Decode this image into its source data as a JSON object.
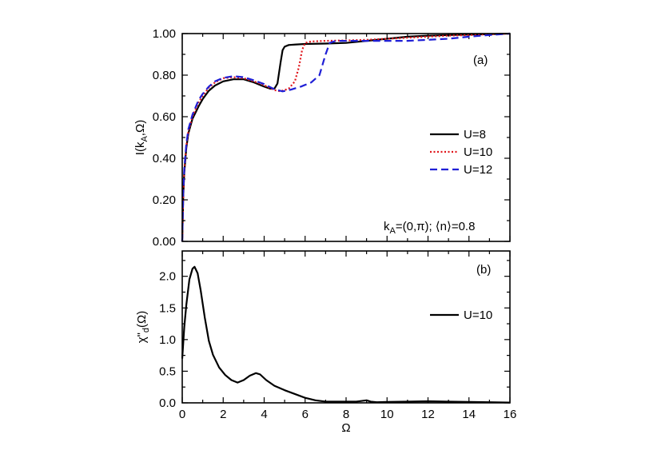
{
  "chart_data": [
    {
      "panel": "(a)",
      "type": "line",
      "xlim": [
        0,
        16
      ],
      "ylim": [
        0,
        1
      ],
      "xlabel": "",
      "ylabel": "I(kA,Ω)",
      "ylabel_parts": {
        "main": "I(k",
        "sub": "A",
        "tail": ",Ω)"
      },
      "y_ticks": [
        0.0,
        0.2,
        0.4,
        0.6,
        0.8,
        1.0
      ],
      "y_tick_labels": [
        "0.00",
        "0.20",
        "0.40",
        "0.60",
        "0.80",
        "1.00"
      ],
      "annotation": "kA=(0,π); ⟨n⟩=0.8",
      "annotation_parts": {
        "main": "k",
        "sub": "A",
        "tail": "=(0,π); ⟨n⟩=0.8"
      },
      "legend_position": "right-middle",
      "series": [
        {
          "name": "U=8",
          "color": "#000000",
          "dash": "solid",
          "x": [
            0,
            0.05,
            0.1,
            0.2,
            0.3,
            0.5,
            0.8,
            1.0,
            1.3,
            1.6,
            2.0,
            2.5,
            3.0,
            3.5,
            4.0,
            4.3,
            4.5,
            4.65,
            4.8,
            4.9,
            5.0,
            5.2,
            5.5,
            6.0,
            7.0,
            8.0,
            9.0,
            10.0,
            11.0,
            12.0,
            13.0,
            14.0,
            15.0,
            16.0
          ],
          "y": [
            0.0,
            0.22,
            0.33,
            0.45,
            0.52,
            0.59,
            0.65,
            0.685,
            0.725,
            0.75,
            0.77,
            0.78,
            0.78,
            0.765,
            0.745,
            0.735,
            0.735,
            0.76,
            0.86,
            0.92,
            0.937,
            0.945,
            0.947,
            0.95,
            0.952,
            0.955,
            0.965,
            0.975,
            0.985,
            0.99,
            0.993,
            0.995,
            0.997,
            1.0
          ]
        },
        {
          "name": "U=10",
          "color": "#e0151b",
          "dash": "dotted",
          "x": [
            0,
            0.05,
            0.1,
            0.2,
            0.3,
            0.5,
            0.8,
            1.0,
            1.3,
            1.6,
            2.0,
            2.5,
            3.0,
            3.5,
            4.0,
            4.5,
            4.8,
            5.2,
            5.5,
            5.7,
            5.85,
            6.0,
            6.3,
            7.0,
            8.0,
            9.0,
            10.0,
            11.0,
            12.0,
            13.0,
            14.0,
            15.0,
            16.0
          ],
          "y": [
            0.0,
            0.23,
            0.34,
            0.46,
            0.53,
            0.6,
            0.67,
            0.7,
            0.74,
            0.765,
            0.785,
            0.79,
            0.785,
            0.77,
            0.752,
            0.728,
            0.722,
            0.735,
            0.77,
            0.84,
            0.92,
            0.955,
            0.962,
            0.965,
            0.967,
            0.97,
            0.975,
            0.98,
            0.985,
            0.99,
            0.993,
            0.997,
            1.0
          ]
        },
        {
          "name": "U=12",
          "color": "#1f1fd6",
          "dash": "dashed",
          "x": [
            0,
            0.05,
            0.1,
            0.2,
            0.3,
            0.5,
            0.8,
            1.0,
            1.3,
            1.6,
            2.0,
            2.5,
            3.0,
            3.5,
            4.0,
            4.5,
            4.9,
            5.3,
            5.8,
            6.3,
            6.7,
            7.0,
            7.2,
            7.5,
            8.0,
            9.0,
            10.0,
            11.0,
            12.0,
            13.0,
            14.0,
            15.0,
            16.0
          ],
          "y": [
            0.0,
            0.24,
            0.35,
            0.47,
            0.54,
            0.61,
            0.68,
            0.71,
            0.745,
            0.77,
            0.787,
            0.795,
            0.79,
            0.775,
            0.757,
            0.732,
            0.722,
            0.73,
            0.745,
            0.765,
            0.8,
            0.9,
            0.955,
            0.965,
            0.965,
            0.965,
            0.965,
            0.965,
            0.97,
            0.975,
            0.985,
            0.993,
            1.0
          ]
        }
      ]
    },
    {
      "panel": "(b)",
      "type": "line",
      "xlim": [
        0,
        16
      ],
      "ylim": [
        0,
        2.4
      ],
      "xlabel": "Ω",
      "ylabel": "χ\"d(Ω)",
      "ylabel_parts": {
        "main": "χ\"",
        "sub": "d",
        "tail": "(Ω)"
      },
      "x_ticks": [
        0,
        2,
        4,
        6,
        8,
        10,
        12,
        14,
        16
      ],
      "x_tick_labels": [
        "0",
        "2",
        "4",
        "6",
        "8",
        "10",
        "12",
        "14",
        "16"
      ],
      "y_ticks": [
        0.0,
        0.5,
        1.0,
        1.5,
        2.0
      ],
      "y_tick_labels": [
        "0.0",
        "0.5",
        "1.0",
        "1.5",
        "2.0"
      ],
      "legend_position": "right-middle",
      "series": [
        {
          "name": "U=10",
          "color": "#000000",
          "dash": "solid",
          "x": [
            0,
            0.1,
            0.2,
            0.35,
            0.5,
            0.6,
            0.75,
            0.9,
            1.1,
            1.3,
            1.5,
            1.8,
            2.1,
            2.4,
            2.7,
            3.0,
            3.3,
            3.6,
            3.8,
            4.1,
            4.5,
            5.0,
            5.5,
            6.0,
            6.5,
            7.0,
            7.5,
            8.0,
            8.5,
            9.0,
            9.2,
            9.5,
            10.0,
            11.0,
            12.0,
            13.0,
            14.0,
            15.0,
            16.0
          ],
          "y": [
            0.7,
            1.2,
            1.55,
            1.95,
            2.12,
            2.15,
            2.05,
            1.78,
            1.35,
            0.98,
            0.76,
            0.56,
            0.44,
            0.36,
            0.32,
            0.36,
            0.43,
            0.47,
            0.45,
            0.36,
            0.27,
            0.2,
            0.14,
            0.08,
            0.04,
            0.02,
            0.02,
            0.02,
            0.02,
            0.04,
            0.02,
            0.01,
            0.015,
            0.02,
            0.025,
            0.02,
            0.015,
            0.01,
            0.005
          ]
        }
      ]
    }
  ]
}
